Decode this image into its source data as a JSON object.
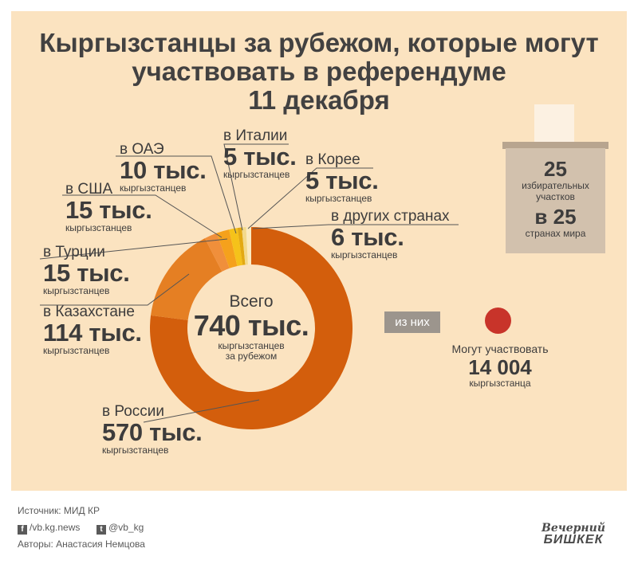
{
  "title": {
    "line1": "Кыргызстанцы за рубежом, которые могут",
    "line2": "участвовать в референдуме",
    "line3": "11 декабря"
  },
  "chart_data": {
    "type": "pie",
    "variant": "donut",
    "title": "Кыргызстанцы за рубежом, которые могут участвовать в референдуме 11 декабря",
    "unit": "тыс. кыргызстанцев",
    "total": 740,
    "slices": [
      {
        "name": "в России",
        "value": 570,
        "color": "#d35e0c"
      },
      {
        "name": "в Казахстане",
        "value": 114,
        "color": "#e57f23"
      },
      {
        "name": "в Турции",
        "value": 15,
        "color": "#f08f3b"
      },
      {
        "name": "в США",
        "value": 15,
        "color": "#f5a11c"
      },
      {
        "name": "в ОАЭ",
        "value": 10,
        "color": "#f5c21a"
      },
      {
        "name": "в Италии",
        "value": 5,
        "color": "#e3a912"
      },
      {
        "name": "в Корее",
        "value": 5,
        "color": "#f3d98a"
      },
      {
        "name": "в других странах",
        "value": 6,
        "color": "#fbeac0"
      }
    ]
  },
  "labels": {
    "russia": {
      "where": "в России",
      "num": "570 тыс.",
      "unit": "кыргызстанцев"
    },
    "kazakhstan": {
      "where": "в Казахстане",
      "num": "114 тыс.",
      "unit": "кыргызстанцев"
    },
    "turkey": {
      "where": "в Турции",
      "num": "15 тыс.",
      "unit": "кыргызстанцев"
    },
    "usa": {
      "where": "в США",
      "num": "15 тыс.",
      "unit": "кыргызстанцев"
    },
    "uae": {
      "where": "в ОАЭ",
      "num": "10 тыс.",
      "unit": "кыргызстанцев"
    },
    "italy": {
      "where": "в Италии",
      "num": "5 тыс.",
      "unit": "кыргызстанцев"
    },
    "korea": {
      "where": "в Корее",
      "num": "5 тыс.",
      "unit": "кыргызстанцев"
    },
    "other": {
      "where": "в других странах",
      "num": "6 тыс.",
      "unit": "кыргызстанцев"
    }
  },
  "center": {
    "line1": "Всего",
    "line2": "740 тыс.",
    "line3": "кыргызстанцев",
    "line4": "за рубежом"
  },
  "ballot": {
    "stations": "25",
    "stations_label1": "избирательных",
    "stations_label2": "участков",
    "countries": "в 25",
    "countries_label": "странах мира"
  },
  "of_them": {
    "label": "из них"
  },
  "can_vote": {
    "label": "Могут участвовать",
    "value": "14 004",
    "unit": "кыргызстанца"
  },
  "footer": {
    "source": "Источник: МИД КР",
    "facebook": "/vb.kg.news",
    "twitter": "@vb_kg",
    "authors": "Авторы: Анастасия Немцова",
    "logo_line1": "Вечерний",
    "logo_line2": "БИШКЕК"
  }
}
